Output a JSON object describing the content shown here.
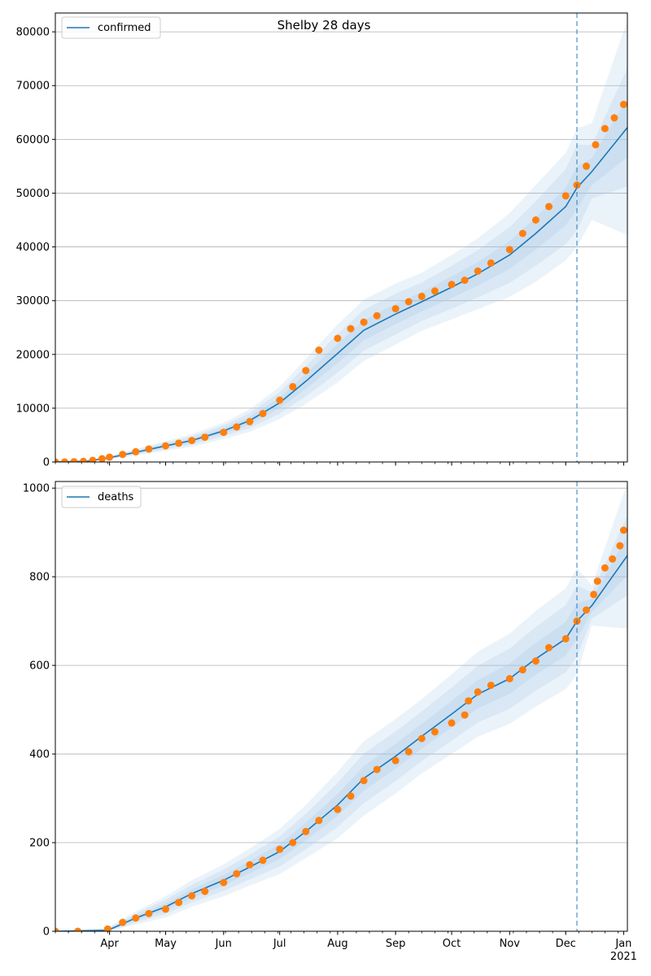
{
  "title": "Shelby 28 days",
  "colors": {
    "line": "#1f77b4",
    "points": "#ff7f0e",
    "band": "#a6c8e6",
    "vline": "#1f77b4",
    "grid": "#b0b0b0"
  },
  "x_ticks": {
    "month_labels": [
      "Apr",
      "May",
      "Jun",
      "Jul",
      "Aug",
      "Sep",
      "Oct",
      "Nov",
      "Dec",
      "Jan"
    ],
    "month_dates": [
      "2020-04-01",
      "2020-05-01",
      "2020-06-01",
      "2020-07-01",
      "2020-08-01",
      "2020-09-01",
      "2020-10-01",
      "2020-11-01",
      "2020-12-01",
      "2021-01-01"
    ],
    "year_label": "2021"
  },
  "chart_data": [
    {
      "type": "line",
      "legend": "confirmed",
      "legend_position": "top-left",
      "x_range": [
        "2020-03-03",
        "2021-01-03"
      ],
      "ylim": [
        0,
        83500
      ],
      "yticks": [
        0,
        10000,
        20000,
        30000,
        40000,
        50000,
        60000,
        70000,
        80000
      ],
      "grid": "horizontal",
      "forecast_start": "2020-12-07",
      "model_x": [
        "2020-03-03",
        "2020-03-20",
        "2020-04-01",
        "2020-04-15",
        "2020-05-01",
        "2020-05-15",
        "2020-06-01",
        "2020-06-15",
        "2020-07-01",
        "2020-07-15",
        "2020-08-01",
        "2020-08-15",
        "2020-09-01",
        "2020-09-15",
        "2020-10-01",
        "2020-10-15",
        "2020-11-01",
        "2020-11-15",
        "2020-12-01",
        "2020-12-07",
        "2020-12-15",
        "2021-01-03"
      ],
      "model_y": [
        0,
        150,
        800,
        1800,
        3000,
        4000,
        5800,
        7700,
        11000,
        15000,
        20200,
        24500,
        27500,
        29800,
        32500,
        35000,
        38500,
        42500,
        47500,
        51000,
        54000,
        62200
      ],
      "band_half_widths": [
        [
          0,
          20,
          100,
          200,
          300,
          400,
          500,
          700,
          1000,
          1400,
          1800,
          1900,
          1900,
          1800,
          2000,
          2200,
          2600,
          3000,
          3500,
          4000,
          2500,
          5500
        ],
        [
          0,
          40,
          200,
          400,
          600,
          800,
          1000,
          1400,
          2000,
          2800,
          3600,
          3800,
          3800,
          3600,
          4000,
          4400,
          5200,
          6000,
          7000,
          8000,
          5000,
          11000
        ],
        [
          0,
          60,
          300,
          600,
          900,
          1200,
          1500,
          2100,
          3000,
          4200,
          5400,
          5700,
          5700,
          5400,
          6000,
          6600,
          7800,
          9000,
          10000,
          11000,
          9000,
          20000
        ]
      ],
      "points": {
        "x": [
          "2020-03-03",
          "2020-03-08",
          "2020-03-13",
          "2020-03-18",
          "2020-03-23",
          "2020-03-28",
          "2020-04-01",
          "2020-04-08",
          "2020-04-15",
          "2020-04-22",
          "2020-05-01",
          "2020-05-08",
          "2020-05-15",
          "2020-05-22",
          "2020-06-01",
          "2020-06-08",
          "2020-06-15",
          "2020-06-22",
          "2020-07-01",
          "2020-07-08",
          "2020-07-15",
          "2020-07-22",
          "2020-08-01",
          "2020-08-08",
          "2020-08-15",
          "2020-08-22",
          "2020-09-01",
          "2020-09-08",
          "2020-09-15",
          "2020-09-22",
          "2020-10-01",
          "2020-10-08",
          "2020-10-15",
          "2020-10-22",
          "2020-11-01",
          "2020-11-08",
          "2020-11-15",
          "2020-11-22",
          "2020-12-01",
          "2020-12-07",
          "2020-12-12",
          "2020-12-17",
          "2020-12-22",
          "2020-12-27",
          "2021-01-01"
        ],
        "y": [
          0,
          0,
          50,
          100,
          300,
          600,
          900,
          1400,
          1900,
          2400,
          3000,
          3500,
          4000,
          4600,
          5500,
          6500,
          7500,
          9000,
          11500,
          14000,
          17000,
          20800,
          23000,
          24800,
          26000,
          27200,
          28500,
          29800,
          30800,
          31800,
          33000,
          33800,
          35500,
          37000,
          39500,
          42500,
          45000,
          47500,
          49500,
          51500,
          55000,
          59000,
          62000,
          64000,
          66500
        ]
      }
    },
    {
      "type": "line",
      "legend": "deaths",
      "legend_position": "top-left",
      "x_range": [
        "2020-03-03",
        "2021-01-03"
      ],
      "ylim": [
        0,
        1015
      ],
      "yticks": [
        0,
        200,
        400,
        600,
        800,
        1000
      ],
      "grid": "horizontal",
      "forecast_start": "2020-12-07",
      "model_x": [
        "2020-03-03",
        "2020-03-31",
        "2020-04-15",
        "2020-05-01",
        "2020-05-15",
        "2020-06-01",
        "2020-06-15",
        "2020-07-01",
        "2020-07-15",
        "2020-08-01",
        "2020-08-15",
        "2020-09-01",
        "2020-09-15",
        "2020-10-01",
        "2020-10-15",
        "2020-11-01",
        "2020-11-15",
        "2020-12-01",
        "2020-12-07",
        "2020-12-15",
        "2021-01-03"
      ],
      "model_y": [
        0,
        2,
        30,
        55,
        85,
        115,
        145,
        180,
        225,
        285,
        345,
        395,
        440,
        490,
        535,
        570,
        615,
        660,
        700,
        735,
        848
      ],
      "band_half_widths": [
        [
          0,
          2,
          5,
          8,
          10,
          12,
          14,
          17,
          20,
          25,
          28,
          28,
          28,
          30,
          32,
          34,
          36,
          38,
          40,
          15,
          45
        ],
        [
          0,
          4,
          10,
          16,
          20,
          24,
          28,
          34,
          40,
          50,
          56,
          56,
          56,
          60,
          64,
          68,
          72,
          76,
          80,
          30,
          90
        ],
        [
          0,
          6,
          15,
          24,
          30,
          36,
          42,
          51,
          60,
          75,
          84,
          84,
          84,
          90,
          96,
          102,
          108,
          114,
          120,
          45,
          165
        ]
      ],
      "points": {
        "x": [
          "2020-03-03",
          "2020-03-15",
          "2020-03-31",
          "2020-04-08",
          "2020-04-15",
          "2020-04-22",
          "2020-05-01",
          "2020-05-08",
          "2020-05-15",
          "2020-05-22",
          "2020-06-01",
          "2020-06-08",
          "2020-06-15",
          "2020-06-22",
          "2020-07-01",
          "2020-07-08",
          "2020-07-15",
          "2020-07-22",
          "2020-08-01",
          "2020-08-08",
          "2020-08-15",
          "2020-08-22",
          "2020-09-01",
          "2020-09-08",
          "2020-09-15",
          "2020-09-22",
          "2020-10-01",
          "2020-10-08",
          "2020-10-10",
          "2020-10-15",
          "2020-10-22",
          "2020-11-01",
          "2020-11-08",
          "2020-11-15",
          "2020-11-22",
          "2020-12-01",
          "2020-12-07",
          "2020-12-12",
          "2020-12-16",
          "2020-12-18",
          "2020-12-22",
          "2020-12-26",
          "2020-12-30",
          "2021-01-01"
        ],
        "y": [
          0,
          0,
          5,
          20,
          30,
          40,
          50,
          65,
          80,
          90,
          110,
          130,
          150,
          160,
          185,
          200,
          225,
          250,
          275,
          305,
          340,
          365,
          385,
          405,
          435,
          450,
          470,
          488,
          520,
          540,
          555,
          570,
          590,
          610,
          640,
          660,
          700,
          725,
          760,
          790,
          820,
          840,
          870,
          905
        ]
      }
    }
  ]
}
